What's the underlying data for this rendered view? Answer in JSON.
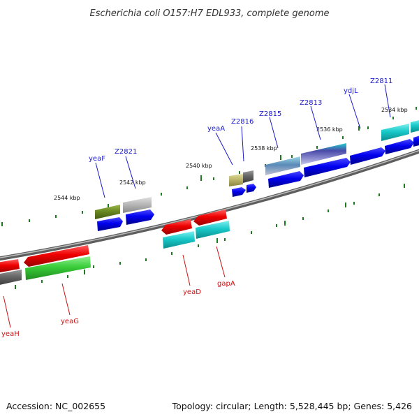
{
  "title": "Escherichia coli O157:H7 EDL933, complete genome",
  "footer": {
    "accession": "Accession: NC_002655",
    "summary": "Topology: circular; Length: 5,528,445 bp; Genes: 5,426"
  },
  "kbp_labels": [
    {
      "text": "2544 kbp",
      "pos": 2544
    },
    {
      "text": "2542 kbp",
      "pos": 2542
    },
    {
      "text": "2540 kbp",
      "pos": 2540
    },
    {
      "text": "2538 kbp",
      "pos": 2538
    },
    {
      "text": "2536 kbp",
      "pos": 2536
    },
    {
      "text": "2534 kbp",
      "pos": 2534
    }
  ],
  "genes_top": [
    {
      "name": "yeaF",
      "color": "#1a1acc"
    },
    {
      "name": "Z2821",
      "color": "#1a1acc"
    },
    {
      "name": "yeaA",
      "color": "#1a1acc"
    },
    {
      "name": "Z2816",
      "color": "#1a1acc"
    },
    {
      "name": "Z2815",
      "color": "#1a1acc"
    },
    {
      "name": "Z2813",
      "color": "#1a1acc"
    },
    {
      "name": "ydjL",
      "color": "#1a1acc"
    },
    {
      "name": "Z2811",
      "color": "#1a1acc"
    }
  ],
  "genes_bottom": [
    {
      "name": "yeaH",
      "color": "#cc1111"
    },
    {
      "name": "yeaG",
      "color": "#cc1111"
    },
    {
      "name": "yeaD",
      "color": "#cc1111"
    },
    {
      "name": "gapA",
      "color": "#cc1111"
    }
  ],
  "colors": {
    "backbone": "#8a8a8a",
    "forward_cds": "#0000ee",
    "reverse_cds": "#ee0000",
    "tick": "#1f7a1f"
  }
}
